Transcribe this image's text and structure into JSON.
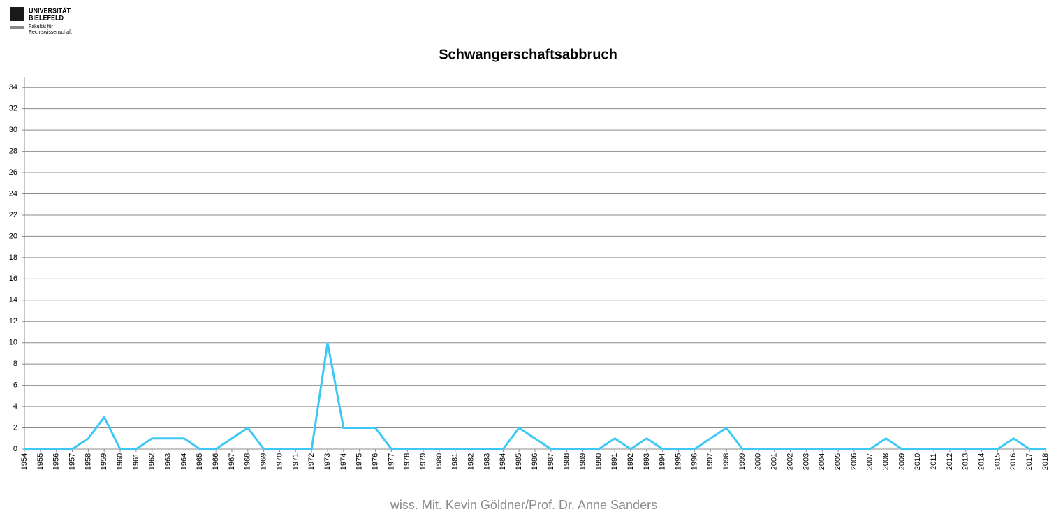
{
  "header": {
    "logo_line1": "UNIVERSITÄT",
    "logo_line2": "BIELEFELD",
    "logo_sub1": "Fakultät für",
    "logo_sub2": "Rechtswissenschaft"
  },
  "chart_data": {
    "type": "line",
    "title": "Schwangerschaftsabbruch",
    "categories": [
      "1954",
      "1955",
      "1956",
      "1957",
      "1958",
      "1959",
      "1960",
      "1961",
      "1962",
      "1963",
      "1964",
      "1965",
      "1966",
      "1967",
      "1968",
      "1969",
      "1970",
      "1971",
      "1972",
      "1973",
      "1974",
      "1975",
      "1976",
      "1977",
      "1978",
      "1979",
      "1980",
      "1981",
      "1982",
      "1983",
      "1984",
      "1985",
      "1986",
      "1987",
      "1988",
      "1989",
      "1990",
      "1991",
      "1992",
      "1993",
      "1994",
      "1995",
      "1996",
      "1997",
      "1998",
      "1999",
      "2000",
      "2001",
      "2002",
      "2003",
      "2004",
      "2005",
      "2006",
      "2007",
      "2008",
      "2009",
      "2010",
      "2011",
      "2012",
      "2013",
      "2014",
      "2015",
      "2016",
      "2017",
      "2018"
    ],
    "values": [
      0,
      0,
      0,
      0,
      1,
      3,
      0,
      0,
      1,
      1,
      1,
      0,
      0,
      1,
      2,
      0,
      0,
      0,
      0,
      10,
      2,
      2,
      2,
      0,
      0,
      0,
      0,
      0,
      0,
      0,
      0,
      2,
      1,
      0,
      0,
      0,
      0,
      1,
      0,
      1,
      0,
      0,
      0,
      1,
      2,
      0,
      0,
      0,
      0,
      0,
      0,
      0,
      0,
      0,
      1,
      0,
      0,
      0,
      0,
      0,
      0,
      0,
      1,
      0,
      0
    ],
    "color": "#3ec8f5",
    "ylim": [
      0,
      35
    ],
    "yticks": [
      0,
      2,
      4,
      6,
      8,
      10,
      12,
      14,
      16,
      18,
      20,
      22,
      24,
      26,
      28,
      30,
      32,
      34
    ],
    "grid": true
  },
  "footer": "wiss. Mit. Kevin Göldner/Prof.  Dr. Anne Sanders"
}
